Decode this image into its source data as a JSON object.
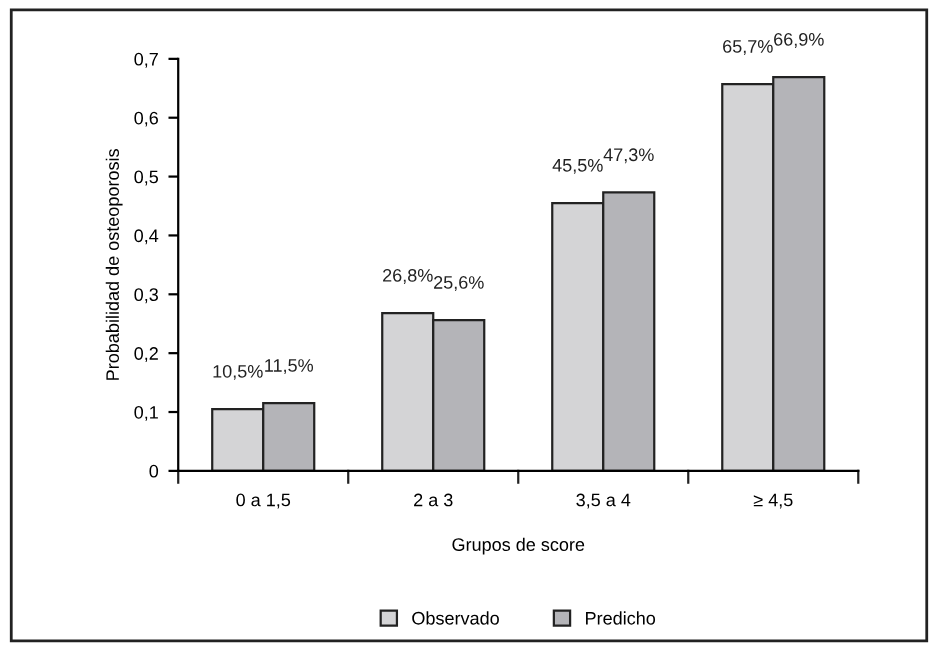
{
  "chart_data": {
    "type": "bar",
    "xlabel": "Grupos de score",
    "ylabel": "Probabilidad de osteoporosis",
    "categories": [
      "0 a 1,5",
      "2 a 3",
      "3,5 a 4",
      "≥ 4,5"
    ],
    "series": [
      {
        "name": "Observado",
        "color": "#d4d4d6",
        "values": [
          0.105,
          0.268,
          0.455,
          0.657
        ],
        "value_labels": [
          "10,5%",
          "26,8%",
          "45,5%",
          "65,7%"
        ]
      },
      {
        "name": "Predicho",
        "color": "#b4b4b8",
        "values": [
          0.115,
          0.256,
          0.473,
          0.669
        ],
        "value_labels": [
          "11,5%",
          "25,6%",
          "47,3%",
          "66,9%"
        ]
      }
    ],
    "ylim": [
      0,
      0.7
    ],
    "yticks": [
      {
        "value": 0,
        "label": "0"
      },
      {
        "value": 0.1,
        "label": "0,1"
      },
      {
        "value": 0.2,
        "label": "0,2"
      },
      {
        "value": 0.3,
        "label": "0,3"
      },
      {
        "value": 0.4,
        "label": "0,4"
      },
      {
        "value": 0.5,
        "label": "0,5"
      },
      {
        "value": 0.6,
        "label": "0,6"
      },
      {
        "value": 0.7,
        "label": "0,7"
      }
    ],
    "grid": false,
    "legend": "bottom"
  }
}
